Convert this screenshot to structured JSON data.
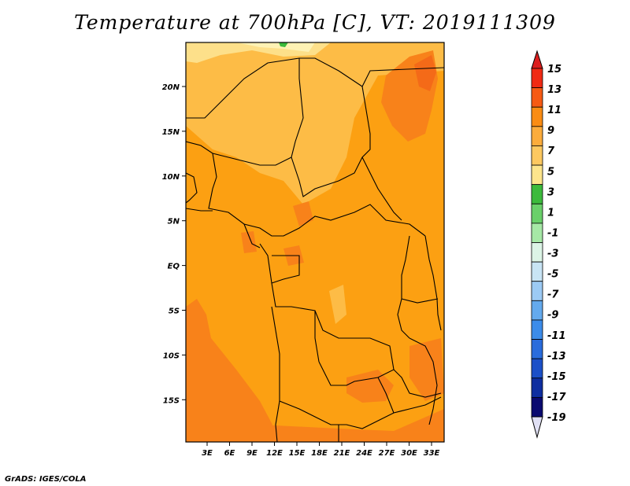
{
  "title": "Temperature at 700hPa [C], VT: 2019111309",
  "credit": "GrADS: IGES/COLA",
  "map": {
    "region": "Central Africa",
    "variable": "Temperature at 700hPa",
    "lon_ticks": [
      "3E",
      "6E",
      "9E",
      "12E",
      "15E",
      "18E",
      "21E",
      "24E",
      "27E",
      "30E",
      "33E"
    ],
    "lat_ticks": [
      "20N",
      "15N",
      "10N",
      "5N",
      "EQ",
      "5S",
      "10S",
      "15S"
    ]
  },
  "colorbar": {
    "labels": [
      "15",
      "13",
      "11",
      "9",
      "7",
      "5",
      "3",
      "1",
      "-1",
      "-3",
      "-5",
      "-7",
      "-9",
      "-11",
      "-13",
      "-15",
      "-17",
      "-19"
    ],
    "colors": [
      "#f02a14",
      "#f65a14",
      "#fa8c14",
      "#fcac3c",
      "#fdc860",
      "#fde58c",
      "#3cba3c",
      "#6ad06a",
      "#a6e8a6",
      "#dcf4e6",
      "#c8e4f4",
      "#9ccaf4",
      "#64aaee",
      "#3c8cea",
      "#2a6cdc",
      "#1c50c8",
      "#0e2ea0",
      "#0a0a70"
    ],
    "top_arrow_color": "#dc1e1e",
    "bottom_arrow_color": "#e0e0f4"
  }
}
